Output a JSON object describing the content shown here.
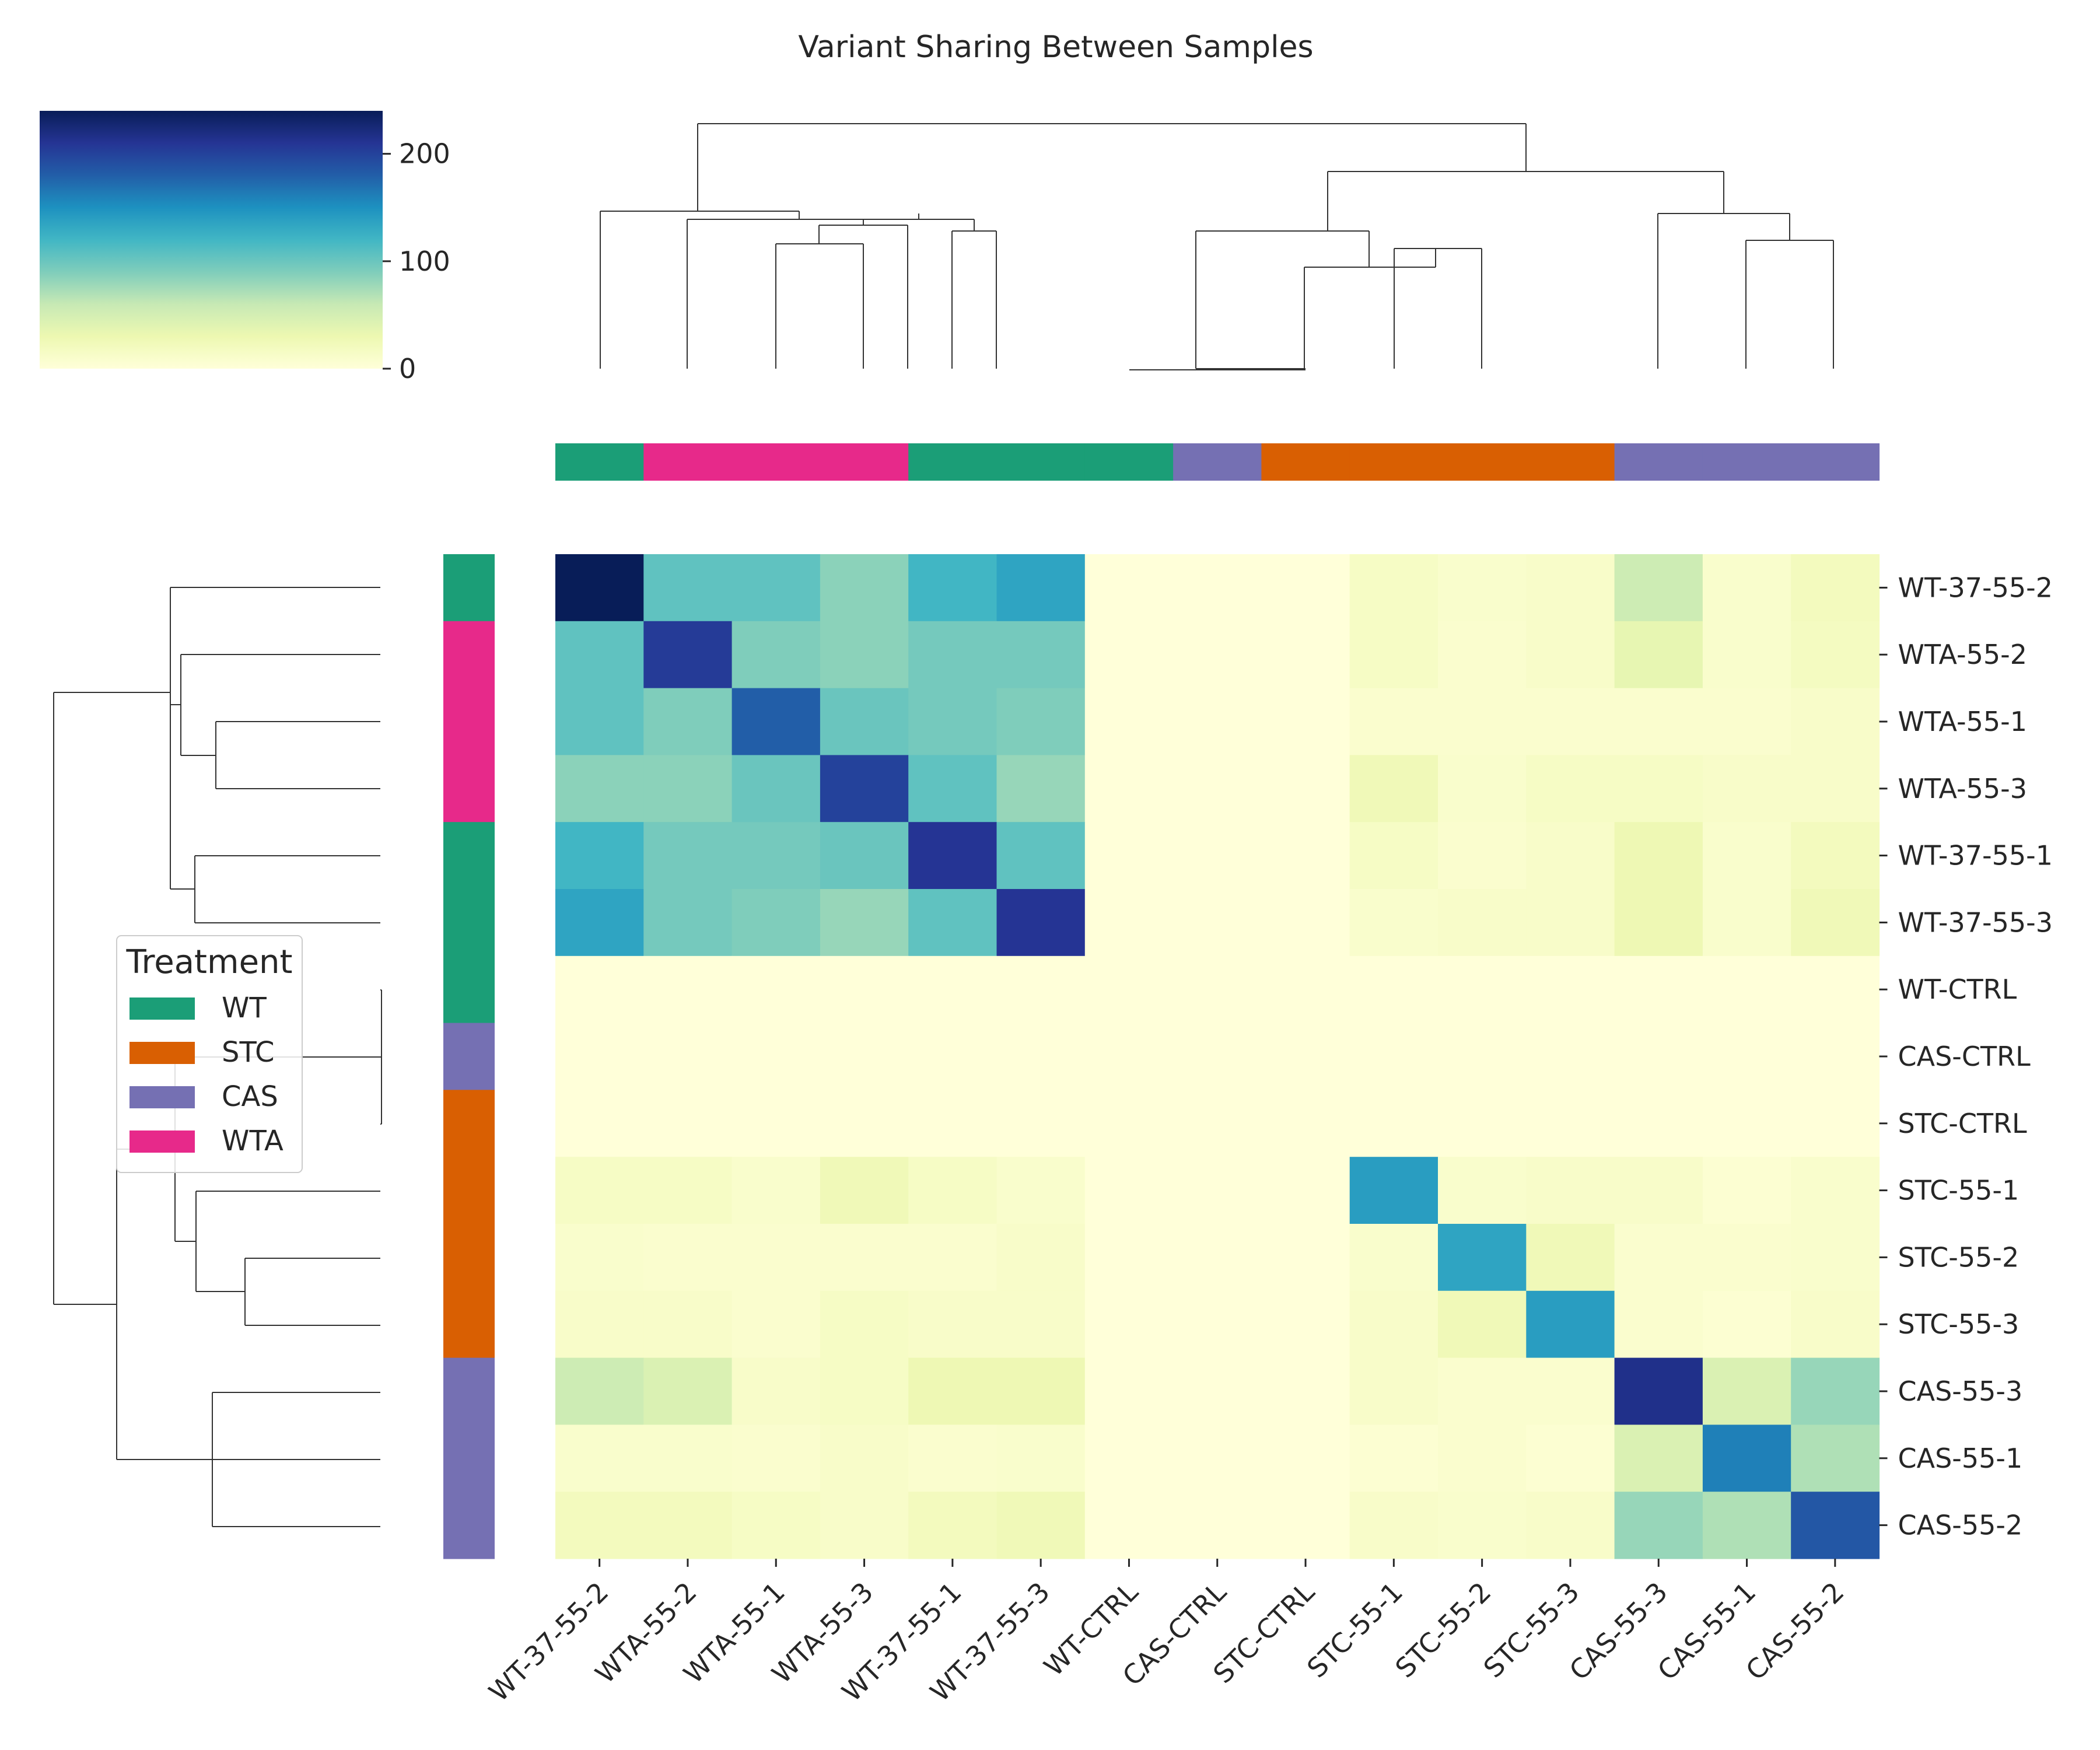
{
  "chart_data": {
    "type": "heatmap",
    "title": "Variant Sharing Between Samples",
    "row_labels": [
      "WT-37-55-2",
      "WTA-55-2",
      "WTA-55-1",
      "WTA-55-3",
      "WT-37-55-1",
      "WT-37-55-3",
      "WT-CTRL",
      "CAS-CTRL",
      "STC-CTRL",
      "STC-55-1",
      "STC-55-2",
      "STC-55-3",
      "CAS-55-3",
      "CAS-55-1",
      "CAS-55-2"
    ],
    "col_labels": [
      "WT-37-55-2",
      "WTA-55-2",
      "WTA-55-1",
      "WTA-55-3",
      "WT-37-55-1",
      "WT-37-55-3",
      "WT-CTRL",
      "CAS-CTRL",
      "STC-CTRL",
      "STC-55-1",
      "STC-55-2",
      "STC-55-3",
      "CAS-55-3",
      "CAS-55-1",
      "CAS-55-2"
    ],
    "values": [
      [
        240,
        105,
        105,
        85,
        120,
        135,
        0,
        0,
        0,
        15,
        10,
        12,
        55,
        10,
        20
      ],
      [
        105,
        205,
        90,
        85,
        95,
        95,
        0,
        0,
        0,
        15,
        8,
        12,
        35,
        10,
        18
      ],
      [
        105,
        90,
        180,
        100,
        95,
        90,
        0,
        0,
        0,
        8,
        8,
        8,
        8,
        8,
        12
      ],
      [
        85,
        85,
        100,
        200,
        105,
        80,
        0,
        0,
        0,
        25,
        10,
        15,
        15,
        12,
        12
      ],
      [
        120,
        95,
        95,
        100,
        210,
        105,
        0,
        0,
        0,
        15,
        8,
        12,
        28,
        10,
        20
      ],
      [
        135,
        95,
        90,
        80,
        105,
        210,
        0,
        0,
        0,
        10,
        12,
        12,
        28,
        10,
        25
      ],
      [
        0,
        0,
        0,
        0,
        0,
        0,
        0,
        0,
        0,
        0,
        0,
        0,
        0,
        0,
        0
      ],
      [
        0,
        0,
        0,
        0,
        0,
        0,
        0,
        0,
        0,
        0,
        0,
        0,
        0,
        0,
        0
      ],
      [
        0,
        0,
        0,
        0,
        0,
        0,
        0,
        0,
        0,
        0,
        0,
        0,
        0,
        0,
        0
      ],
      [
        15,
        15,
        10,
        25,
        15,
        10,
        0,
        0,
        0,
        140,
        10,
        12,
        12,
        5,
        10
      ],
      [
        10,
        8,
        8,
        8,
        8,
        12,
        0,
        0,
        0,
        10,
        135,
        25,
        8,
        8,
        10
      ],
      [
        12,
        12,
        8,
        15,
        12,
        12,
        0,
        0,
        0,
        12,
        25,
        140,
        8,
        5,
        12
      ],
      [
        55,
        45,
        12,
        15,
        28,
        28,
        0,
        0,
        0,
        12,
        8,
        8,
        215,
        45,
        80
      ],
      [
        10,
        10,
        8,
        12,
        8,
        10,
        0,
        0,
        0,
        5,
        8,
        5,
        45,
        160,
        70
      ],
      [
        20,
        20,
        15,
        12,
        20,
        25,
        0,
        0,
        0,
        12,
        10,
        12,
        80,
        70,
        185
      ]
    ],
    "row_groups": [
      "WT",
      "WTA",
      "WTA",
      "WTA",
      "WT",
      "WT",
      "WT",
      "CAS",
      "STC",
      "STC",
      "STC",
      "STC",
      "CAS",
      "CAS",
      "CAS"
    ],
    "col_groups": [
      "WT",
      "WTA",
      "WTA",
      "WTA",
      "WT",
      "WT",
      "WT",
      "CAS",
      "STC",
      "STC",
      "STC",
      "STC",
      "CAS",
      "CAS",
      "CAS"
    ],
    "colorbar": {
      "min": 0,
      "max": 240,
      "ticks": [
        0,
        100,
        200
      ],
      "colormap": "YlGnBu"
    },
    "legend": {
      "title": "Treatment",
      "placement": "left",
      "entries": [
        {
          "label": "WT",
          "color": "#1b9e77"
        },
        {
          "label": "STC",
          "color": "#d95f02"
        },
        {
          "label": "CAS",
          "color": "#7570b3"
        },
        {
          "label": "WTA",
          "color": "#e7298a"
        }
      ]
    },
    "dendrograms": {
      "merge_order": [
        [
          2,
          3
        ],
        [
          10,
          11
        ],
        [
          13,
          14
        ],
        [
          4,
          5
        ],
        [
          1,
          "2+3"
        ],
        [
          9,
          "10+11"
        ],
        [
          12,
          "13+14"
        ],
        [
          "1+2+3",
          "4+5"
        ],
        [
          6,
          7,
          8
        ],
        [
          0,
          "1-5"
        ],
        [
          "6-8",
          "9-11"
        ],
        [
          "6-11",
          "12-14"
        ],
        [
          "0-5",
          "6-14"
        ]
      ]
    }
  }
}
